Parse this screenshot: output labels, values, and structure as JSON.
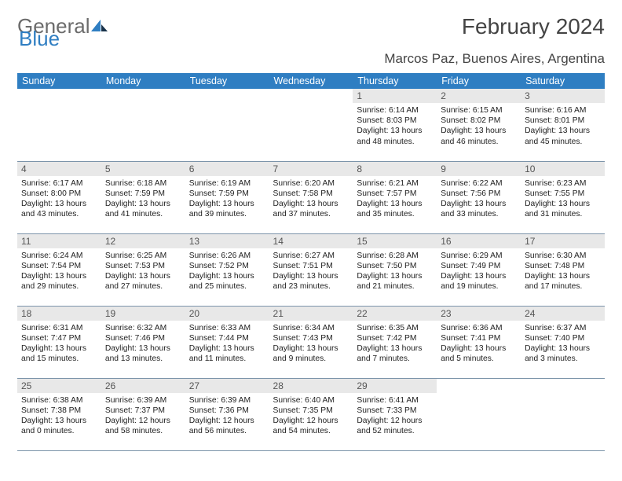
{
  "logo": {
    "word1": "General",
    "word2": "Blue"
  },
  "title": "February 2024",
  "location": "Marcos Paz, Buenos Aires, Argentina",
  "colors": {
    "header_bg": "#2f7ec2",
    "header_fg": "#ffffff",
    "daynum_bg": "#e8e8e8",
    "row_border": "#7c94aa",
    "logo_gray": "#6b6b6b",
    "logo_blue": "#2f7ec2"
  },
  "weekdays": [
    "Sunday",
    "Monday",
    "Tuesday",
    "Wednesday",
    "Thursday",
    "Friday",
    "Saturday"
  ],
  "weeks": [
    [
      null,
      null,
      null,
      null,
      {
        "n": "1",
        "sr": "6:14 AM",
        "ss": "8:03 PM",
        "dl": "13 hours and 48 minutes."
      },
      {
        "n": "2",
        "sr": "6:15 AM",
        "ss": "8:02 PM",
        "dl": "13 hours and 46 minutes."
      },
      {
        "n": "3",
        "sr": "6:16 AM",
        "ss": "8:01 PM",
        "dl": "13 hours and 45 minutes."
      }
    ],
    [
      {
        "n": "4",
        "sr": "6:17 AM",
        "ss": "8:00 PM",
        "dl": "13 hours and 43 minutes."
      },
      {
        "n": "5",
        "sr": "6:18 AM",
        "ss": "7:59 PM",
        "dl": "13 hours and 41 minutes."
      },
      {
        "n": "6",
        "sr": "6:19 AM",
        "ss": "7:59 PM",
        "dl": "13 hours and 39 minutes."
      },
      {
        "n": "7",
        "sr": "6:20 AM",
        "ss": "7:58 PM",
        "dl": "13 hours and 37 minutes."
      },
      {
        "n": "8",
        "sr": "6:21 AM",
        "ss": "7:57 PM",
        "dl": "13 hours and 35 minutes."
      },
      {
        "n": "9",
        "sr": "6:22 AM",
        "ss": "7:56 PM",
        "dl": "13 hours and 33 minutes."
      },
      {
        "n": "10",
        "sr": "6:23 AM",
        "ss": "7:55 PM",
        "dl": "13 hours and 31 minutes."
      }
    ],
    [
      {
        "n": "11",
        "sr": "6:24 AM",
        "ss": "7:54 PM",
        "dl": "13 hours and 29 minutes."
      },
      {
        "n": "12",
        "sr": "6:25 AM",
        "ss": "7:53 PM",
        "dl": "13 hours and 27 minutes."
      },
      {
        "n": "13",
        "sr": "6:26 AM",
        "ss": "7:52 PM",
        "dl": "13 hours and 25 minutes."
      },
      {
        "n": "14",
        "sr": "6:27 AM",
        "ss": "7:51 PM",
        "dl": "13 hours and 23 minutes."
      },
      {
        "n": "15",
        "sr": "6:28 AM",
        "ss": "7:50 PM",
        "dl": "13 hours and 21 minutes."
      },
      {
        "n": "16",
        "sr": "6:29 AM",
        "ss": "7:49 PM",
        "dl": "13 hours and 19 minutes."
      },
      {
        "n": "17",
        "sr": "6:30 AM",
        "ss": "7:48 PM",
        "dl": "13 hours and 17 minutes."
      }
    ],
    [
      {
        "n": "18",
        "sr": "6:31 AM",
        "ss": "7:47 PM",
        "dl": "13 hours and 15 minutes."
      },
      {
        "n": "19",
        "sr": "6:32 AM",
        "ss": "7:46 PM",
        "dl": "13 hours and 13 minutes."
      },
      {
        "n": "20",
        "sr": "6:33 AM",
        "ss": "7:44 PM",
        "dl": "13 hours and 11 minutes."
      },
      {
        "n": "21",
        "sr": "6:34 AM",
        "ss": "7:43 PM",
        "dl": "13 hours and 9 minutes."
      },
      {
        "n": "22",
        "sr": "6:35 AM",
        "ss": "7:42 PM",
        "dl": "13 hours and 7 minutes."
      },
      {
        "n": "23",
        "sr": "6:36 AM",
        "ss": "7:41 PM",
        "dl": "13 hours and 5 minutes."
      },
      {
        "n": "24",
        "sr": "6:37 AM",
        "ss": "7:40 PM",
        "dl": "13 hours and 3 minutes."
      }
    ],
    [
      {
        "n": "25",
        "sr": "6:38 AM",
        "ss": "7:38 PM",
        "dl": "13 hours and 0 minutes."
      },
      {
        "n": "26",
        "sr": "6:39 AM",
        "ss": "7:37 PM",
        "dl": "12 hours and 58 minutes."
      },
      {
        "n": "27",
        "sr": "6:39 AM",
        "ss": "7:36 PM",
        "dl": "12 hours and 56 minutes."
      },
      {
        "n": "28",
        "sr": "6:40 AM",
        "ss": "7:35 PM",
        "dl": "12 hours and 54 minutes."
      },
      {
        "n": "29",
        "sr": "6:41 AM",
        "ss": "7:33 PM",
        "dl": "12 hours and 52 minutes."
      },
      null,
      null
    ]
  ],
  "labels": {
    "sunrise": "Sunrise:",
    "sunset": "Sunset:",
    "daylight": "Daylight:"
  }
}
